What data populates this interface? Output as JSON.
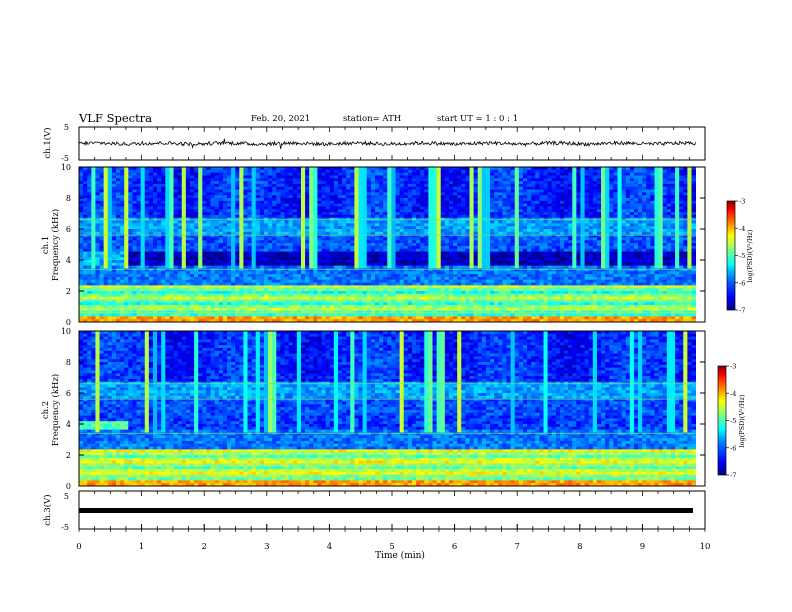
{
  "header": {
    "title": "VLF Spectra",
    "date": "Feb. 20, 2021",
    "station": "station= ATH",
    "start": "start  UT =   1 : 0  : 1"
  },
  "colors": {
    "colormap": [
      "#00007f",
      "#0000ff",
      "#0080ff",
      "#00ffff",
      "#80ff80",
      "#ffff00",
      "#ff8000",
      "#ff0000",
      "#7f0000"
    ]
  },
  "chart_data": [
    {
      "type": "line",
      "panel": "ch1-waveform",
      "ylabel": "ch.1(V)",
      "ylim": [
        -5,
        5
      ],
      "yticks": [
        "5",
        "-5"
      ],
      "x_range_min": [
        0,
        9.85
      ],
      "series": [
        {
          "values": [
            -0.3,
            0.2,
            -0.1,
            0.1,
            -0.2,
            0.0,
            0.3,
            -0.2,
            0.1,
            -0.1
          ]
        }
      ]
    },
    {
      "type": "heatmap",
      "panel": "ch1-spectrogram",
      "ylabel_line1": "ch.1",
      "ylabel_line2": "Frequency  (kHz)",
      "ylim": [
        0,
        10
      ],
      "yticks": [
        "0",
        "2",
        "4",
        "6",
        "8",
        "10"
      ],
      "colorbar": {
        "label": "log(PSD)(V²/Hz)",
        "range": [
          -7,
          -3
        ],
        "ticks": [
          "-3",
          "-4",
          "-5",
          "-6",
          "-7"
        ]
      }
    },
    {
      "type": "heatmap",
      "panel": "ch2-spectrogram",
      "ylabel_line1": "ch.2",
      "ylabel_line2": "Frequency  (kHz)",
      "ylim": [
        0,
        10
      ],
      "yticks": [
        "0",
        "2",
        "4",
        "6",
        "8",
        "10"
      ],
      "colorbar": {
        "label": "log(PSD)(V²/Hz)",
        "range": [
          -7,
          -3
        ],
        "ticks": [
          "-3",
          "-4",
          "-5",
          "-6",
          "-7"
        ]
      }
    },
    {
      "type": "line",
      "panel": "ch3-waveform",
      "ylabel": "ch.3(V)",
      "ylim": [
        -5,
        5
      ],
      "yticks": [
        "5",
        "-5"
      ],
      "series": [
        {
          "values": [
            0,
            0
          ]
        }
      ]
    }
  ],
  "xaxis": {
    "label": "Time  (min)",
    "range": [
      0,
      10
    ],
    "ticks": [
      "0",
      "1",
      "2",
      "3",
      "4",
      "5",
      "6",
      "7",
      "8",
      "9",
      "10"
    ]
  }
}
